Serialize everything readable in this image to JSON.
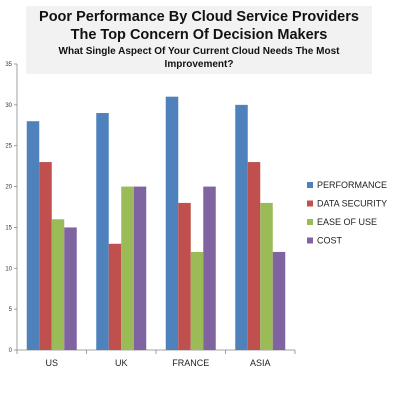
{
  "chart_data": {
    "type": "bar",
    "title": "Poor Performance By Cloud Service Providers The Top Concern Of Decision Makers",
    "subtitle": "What Single Aspect Of Your Current Cloud Needs The Most Improvement?",
    "categories": [
      "US",
      "UK",
      "FRANCE",
      "ASIA"
    ],
    "series": [
      {
        "name": "PERFORMANCE",
        "color": "#4f81bd",
        "values": [
          28,
          29,
          31,
          30
        ]
      },
      {
        "name": "DATA SECURITY",
        "color": "#c0504d",
        "values": [
          23,
          13,
          18,
          23
        ]
      },
      {
        "name": "EASE OF USE",
        "color": "#9bbb59",
        "values": [
          16,
          20,
          12,
          18
        ]
      },
      {
        "name": "COST",
        "color": "#8064a2",
        "values": [
          15,
          20,
          20,
          12
        ]
      }
    ],
    "ylim": [
      0,
      35
    ],
    "yticks": [
      0,
      5,
      10,
      15,
      20,
      25,
      30,
      35
    ],
    "grid": false,
    "legend_position": "right"
  }
}
